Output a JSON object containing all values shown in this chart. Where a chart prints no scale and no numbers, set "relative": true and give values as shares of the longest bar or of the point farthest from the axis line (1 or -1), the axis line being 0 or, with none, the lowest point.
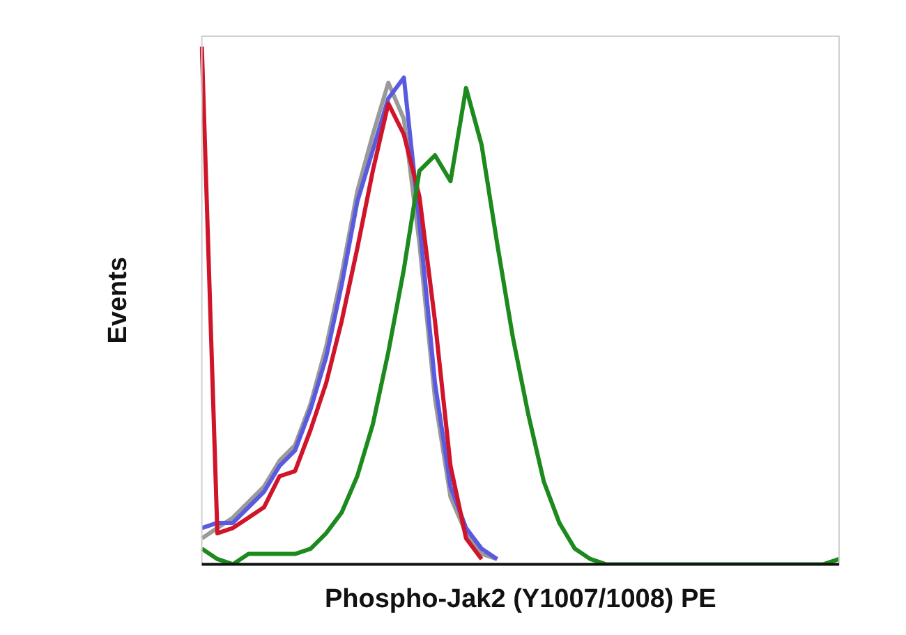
{
  "chart_data": {
    "type": "line",
    "relative": true,
    "xlabel": "Phospho-Jak2 (Y1007/1008) PE",
    "ylabel": "Events",
    "tick_labels": false,
    "grid": false,
    "legend": false,
    "marker": "none",
    "line_style": "solid",
    "categories": [
      null,
      null,
      null,
      null,
      null,
      null,
      null,
      null,
      null,
      null,
      null,
      null,
      null,
      null,
      null,
      null,
      null,
      null,
      null,
      null,
      null,
      null,
      null,
      null,
      null,
      null,
      null,
      null,
      null,
      null,
      null,
      null,
      null,
      null,
      null,
      null,
      null,
      null,
      null,
      null,
      null,
      null
    ],
    "series": [
      {
        "color": "#9a9a9a",
        "values": [
          0.05,
          0.07,
          0.09,
          0.12,
          0.15,
          0.2,
          0.23,
          0.31,
          0.42,
          0.56,
          0.72,
          0.83,
          0.93,
          0.86,
          0.62,
          0.32,
          0.13,
          0.06,
          0.02,
          0.01,
          null,
          null,
          null,
          null,
          null,
          null,
          null,
          null,
          null,
          null,
          null,
          null,
          null,
          null,
          null,
          null,
          null,
          null,
          null,
          null,
          null,
          null
        ]
      },
      {
        "color": "#5a5ae0",
        "values": [
          0.07,
          0.08,
          0.08,
          0.11,
          0.14,
          0.19,
          0.22,
          0.3,
          0.4,
          0.54,
          0.7,
          0.8,
          0.9,
          0.94,
          0.66,
          0.35,
          0.15,
          0.07,
          0.03,
          0.01,
          null,
          null,
          null,
          null,
          null,
          null,
          null,
          null,
          null,
          null,
          null,
          null,
          null,
          null,
          null,
          null,
          null,
          null,
          null,
          null,
          null,
          null
        ]
      },
      {
        "color": "#d0142a",
        "values": [
          1,
          0.06,
          0.07,
          0.09,
          0.11,
          0.17,
          0.18,
          0.26,
          0.35,
          0.47,
          0.61,
          0.76,
          0.89,
          0.83,
          0.71,
          0.47,
          0.19,
          0.05,
          0.01,
          null,
          null,
          null,
          null,
          null,
          null,
          null,
          null,
          null,
          null,
          null,
          null,
          null,
          null,
          null,
          null,
          null,
          null,
          null,
          null,
          null,
          null,
          null
        ]
      },
      {
        "color": "#1d8a1d",
        "values": [
          0.03,
          0.01,
          0,
          0.02,
          0.02,
          0.02,
          0.02,
          0.03,
          0.06,
          0.1,
          0.17,
          0.27,
          0.41,
          0.57,
          0.76,
          0.79,
          0.74,
          0.92,
          0.81,
          0.62,
          0.44,
          0.29,
          0.16,
          0.08,
          0.03,
          0.01,
          0,
          0,
          0,
          0,
          0,
          0,
          0,
          0,
          0,
          0,
          0,
          0,
          0,
          0,
          0,
          0.01
        ]
      }
    ]
  }
}
